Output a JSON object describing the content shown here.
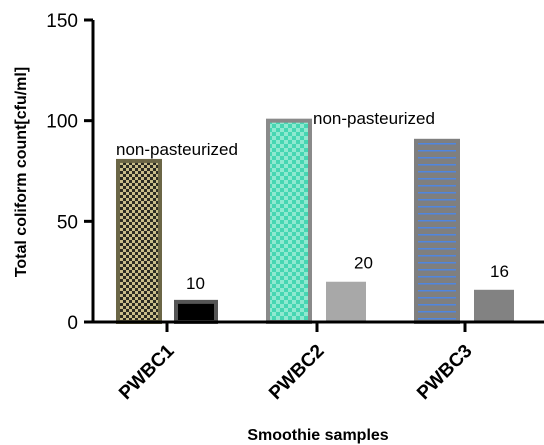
{
  "chart_data": {
    "type": "bar",
    "categories": [
      "PWBC1",
      "PWBC2",
      "PWBC3"
    ],
    "series": [
      {
        "values": [
          80,
          100,
          90
        ]
      },
      {
        "values": [
          10,
          20,
          16
        ]
      }
    ],
    "data_labels": [
      "10",
      "20",
      "16"
    ],
    "annotations": [
      "non-pasteurized",
      "non-pasteurized"
    ],
    "xlabel": "Smoothie samples",
    "ylabel": "Total coliform count[cfu/ml]",
    "ylim": [
      0,
      150
    ],
    "yticks": [
      "0",
      "50",
      "100",
      "150"
    ],
    "grid": false,
    "colors": {
      "PWBC1_first": "#6b6646",
      "PWBC1_second": "#000000",
      "PWBC2_first": "#46d6b2",
      "PWBC2_second": "#a8a8a8",
      "PWBC3_first": "#7f7f7f",
      "PWBC3_second": "#828282"
    }
  }
}
